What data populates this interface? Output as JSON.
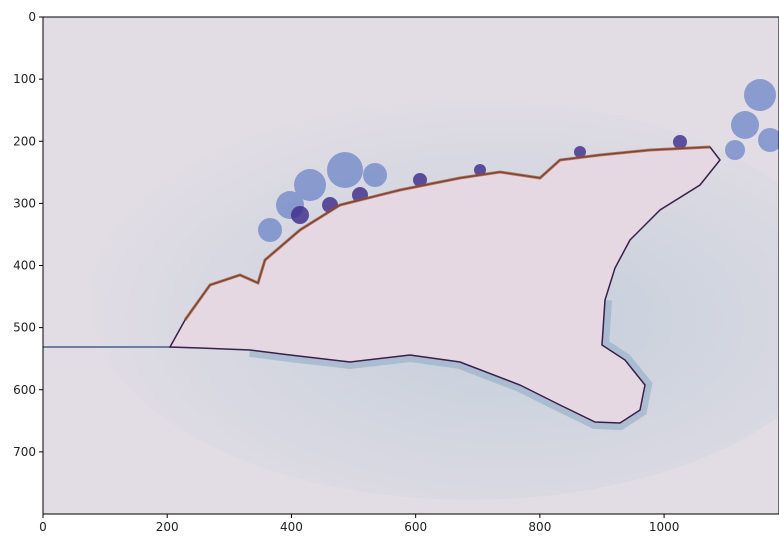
{
  "chart_data": {
    "type": "image",
    "xlim": [
      0,
      1185
    ],
    "ylim": [
      800,
      0
    ],
    "xticks": [
      0,
      200,
      400,
      600,
      800,
      1000
    ],
    "yticks": [
      0,
      100,
      200,
      300,
      400,
      500,
      600,
      700
    ]
  }
}
